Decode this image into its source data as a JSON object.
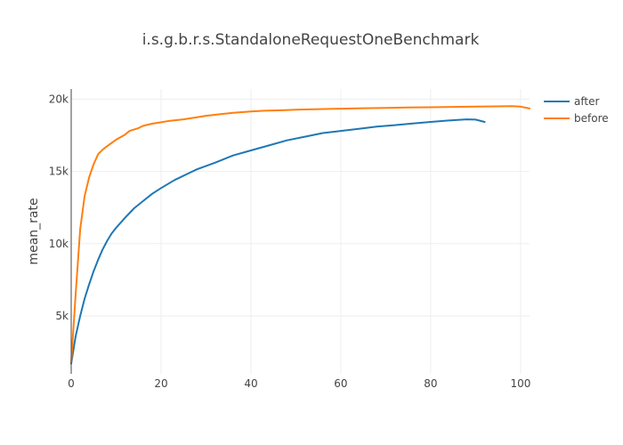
{
  "chart_data": {
    "type": "line",
    "title": "i.s.g.b.r.s.StandaloneRequestOneBenchmark",
    "xlabel": "",
    "ylabel": "mean_rate",
    "xlim": [
      0,
      102
    ],
    "ylim": [
      1000,
      20700
    ],
    "x_ticks": [
      0,
      20,
      40,
      60,
      80,
      100
    ],
    "x_tick_labels": [
      "0",
      "20",
      "40",
      "60",
      "80",
      "100"
    ],
    "y_ticks": [
      5000,
      10000,
      15000,
      20000
    ],
    "y_tick_labels": [
      "5k",
      "10k",
      "15k",
      "20k"
    ],
    "grid": true,
    "legend_position": "top-right",
    "series": [
      {
        "name": "after",
        "color": "#1f77b4",
        "x": [
          0,
          1,
          2,
          3,
          4,
          5,
          6,
          7,
          8,
          9,
          10,
          12,
          14,
          16,
          18,
          20,
          23,
          26,
          28,
          32,
          36,
          40,
          44,
          48,
          52,
          56,
          60,
          64,
          68,
          72,
          76,
          80,
          84,
          88,
          90,
          92
        ],
        "y": [
          1700,
          3600,
          5000,
          6200,
          7200,
          8100,
          8900,
          9600,
          10200,
          10700,
          11100,
          11800,
          12450,
          12950,
          13450,
          13850,
          14400,
          14850,
          15150,
          15600,
          16100,
          16450,
          16800,
          17150,
          17400,
          17650,
          17800,
          17950,
          18100,
          18200,
          18320,
          18420,
          18520,
          18600,
          18580,
          18420
        ]
      },
      {
        "name": "before",
        "color": "#ff7f0e",
        "x": [
          0,
          1,
          2,
          3,
          4,
          5,
          6,
          7,
          8,
          10,
          12,
          13,
          15,
          16,
          18,
          20,
          22,
          25,
          28,
          30,
          33,
          36,
          40,
          43,
          47,
          50,
          55,
          60,
          65,
          70,
          75,
          80,
          85,
          90,
          95,
          98,
          100,
          102
        ],
        "y": [
          1800,
          6500,
          11000,
          13300,
          14600,
          15500,
          16200,
          16500,
          16750,
          17200,
          17550,
          17800,
          18000,
          18150,
          18300,
          18400,
          18500,
          18600,
          18750,
          18850,
          18950,
          19050,
          19150,
          19200,
          19230,
          19270,
          19310,
          19340,
          19370,
          19390,
          19420,
          19440,
          19460,
          19480,
          19500,
          19520,
          19480,
          19350
        ]
      }
    ]
  }
}
